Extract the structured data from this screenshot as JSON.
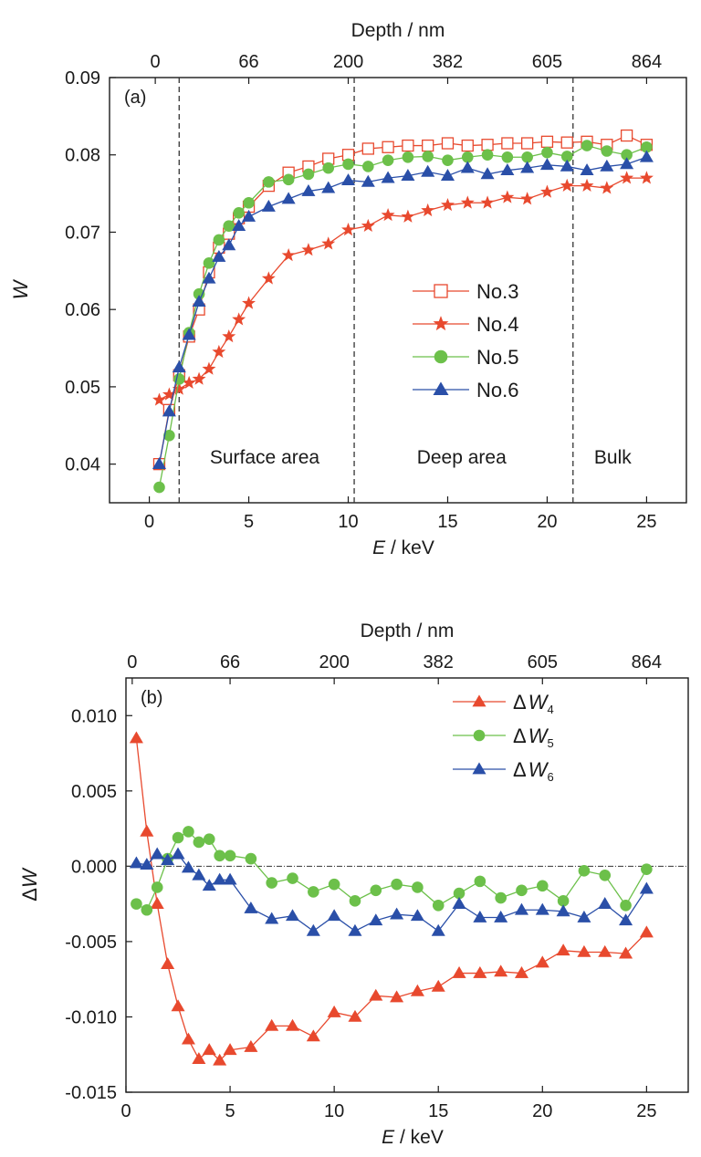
{
  "colors": {
    "no3": "#e8492e",
    "no4": "#e8492e",
    "no5": "#6cc04a",
    "no6": "#2a4fa8",
    "dW4": "#e8492e",
    "dW5": "#6cc04a",
    "dW6": "#2a4fa8"
  },
  "chart_data": [
    {
      "type": "line",
      "panel_label": "(a)",
      "xlabel_italic": "E",
      "xlabel_rest": " / keV",
      "ylabel": "W",
      "top_axis_label": "Depth / nm",
      "xlim": [
        -2,
        27
      ],
      "ylim": [
        0.035,
        0.09
      ],
      "xticks": [
        0,
        5,
        10,
        15,
        20,
        25
      ],
      "xtick_labels": [
        "0",
        "5",
        "10",
        "15",
        "20",
        "25"
      ],
      "yticks": [
        0.04,
        0.05,
        0.06,
        0.07,
        0.08,
        0.09
      ],
      "ytick_labels": [
        "0.04",
        "0.05",
        "0.06",
        "0.07",
        "0.08",
        "0.09"
      ],
      "top_ticks": [
        0.3,
        5,
        10,
        15,
        20,
        25
      ],
      "top_tick_labels": [
        "0",
        "66",
        "200",
        "382",
        "605",
        "864"
      ],
      "vlines": [
        1.5,
        10.3,
        21.3
      ],
      "regions": [
        {
          "text": "Surface area",
          "x": 5.8,
          "y": 0.0401
        },
        {
          "text": "Deep area",
          "x": 15.7,
          "y": 0.0401
        },
        {
          "text": "Bulk",
          "x": 23.3,
          "y": 0.0401
        }
      ],
      "legend": [
        "No.3",
        "No.4",
        "No.5",
        "No.6"
      ],
      "series": [
        {
          "name": "No.3",
          "marker": "square-open",
          "color_key": "no3",
          "x": [
            0.5,
            1,
            1.5,
            2,
            2.5,
            3,
            3.5,
            4,
            4.5,
            5,
            6,
            7,
            8,
            9,
            10,
            11,
            12,
            13,
            14,
            15,
            16,
            17,
            18,
            19,
            20,
            21,
            22,
            23,
            24,
            25
          ],
          "y": [
            0.04,
            0.047,
            0.0515,
            0.0565,
            0.06,
            0.0648,
            0.068,
            0.0698,
            0.0718,
            0.0733,
            0.076,
            0.0777,
            0.0785,
            0.0795,
            0.08,
            0.0808,
            0.081,
            0.0812,
            0.0812,
            0.0815,
            0.0812,
            0.0813,
            0.0815,
            0.0815,
            0.0817,
            0.0816,
            0.0817,
            0.0813,
            0.0825,
            0.0813
          ]
        },
        {
          "name": "No.4",
          "marker": "star",
          "color_key": "no4",
          "x": [
            0.5,
            1,
            1.5,
            2,
            2.5,
            3,
            3.5,
            4,
            4.5,
            5,
            6,
            7,
            8,
            9,
            10,
            11,
            12,
            13,
            14,
            15,
            16,
            17,
            18,
            19,
            20,
            21,
            22,
            23,
            24,
            25
          ],
          "y": [
            0.0483,
            0.049,
            0.0497,
            0.0505,
            0.051,
            0.0523,
            0.0545,
            0.0565,
            0.0587,
            0.0608,
            0.064,
            0.067,
            0.0677,
            0.0685,
            0.0703,
            0.0708,
            0.0722,
            0.072,
            0.0728,
            0.0735,
            0.0738,
            0.0738,
            0.0745,
            0.0743,
            0.0752,
            0.076,
            0.076,
            0.0757,
            0.077,
            0.077
          ]
        },
        {
          "name": "No.5",
          "marker": "circle",
          "color_key": "no5",
          "x": [
            0.5,
            1,
            1.5,
            2,
            2.5,
            3,
            3.5,
            4,
            4.5,
            5,
            6,
            7,
            8,
            9,
            10,
            11,
            12,
            13,
            14,
            15,
            16,
            17,
            18,
            19,
            20,
            21,
            22,
            23,
            24,
            25
          ],
          "y": [
            0.037,
            0.0437,
            0.051,
            0.057,
            0.062,
            0.066,
            0.069,
            0.0708,
            0.0725,
            0.0738,
            0.0765,
            0.0768,
            0.0775,
            0.0783,
            0.0788,
            0.0785,
            0.0793,
            0.0797,
            0.0798,
            0.0793,
            0.0797,
            0.08,
            0.0797,
            0.0797,
            0.0803,
            0.0798,
            0.0812,
            0.0805,
            0.08,
            0.081
          ]
        },
        {
          "name": "No.6",
          "marker": "triangle",
          "color_key": "no6",
          "x": [
            0.5,
            1,
            1.5,
            2,
            2.5,
            3,
            3.5,
            4,
            4.5,
            5,
            6,
            7,
            8,
            9,
            10,
            11,
            12,
            13,
            14,
            15,
            16,
            17,
            18,
            19,
            20,
            21,
            22,
            23,
            24,
            25
          ],
          "y": [
            0.04,
            0.0468,
            0.0525,
            0.0567,
            0.061,
            0.064,
            0.0668,
            0.0683,
            0.0708,
            0.072,
            0.0733,
            0.0743,
            0.0753,
            0.0757,
            0.0767,
            0.0765,
            0.077,
            0.0773,
            0.0778,
            0.0773,
            0.0783,
            0.0775,
            0.078,
            0.0783,
            0.0787,
            0.0785,
            0.078,
            0.0785,
            0.0788,
            0.0797
          ]
        }
      ]
    },
    {
      "type": "line",
      "panel_label": "(b)",
      "xlabel_italic": "E",
      "xlabel_rest": " / keV",
      "ylabel": "ΔW",
      "top_axis_label": "Depth / nm",
      "xlim": [
        0,
        27
      ],
      "ylim": [
        -0.015,
        0.0125
      ],
      "xticks": [
        0,
        5,
        10,
        15,
        20,
        25
      ],
      "xtick_labels": [
        "0",
        "5",
        "10",
        "15",
        "20",
        "25"
      ],
      "yticks": [
        -0.015,
        -0.01,
        -0.005,
        0,
        0.005,
        0.01
      ],
      "ytick_labels": [
        "-0.015",
        "-0.010",
        "-0.005",
        "0.000",
        "0.005",
        "0.010"
      ],
      "top_ticks": [
        0.3,
        5,
        10,
        15,
        20,
        25
      ],
      "top_tick_labels": [
        "0",
        "66",
        "200",
        "382",
        "605",
        "864"
      ],
      "hline": 0,
      "legend": [
        {
          "delta": "Δ",
          "var": "W",
          "sub": "4"
        },
        {
          "delta": "Δ",
          "var": "W",
          "sub": "5"
        },
        {
          "delta": "Δ",
          "var": "W",
          "sub": "6"
        }
      ],
      "series": [
        {
          "name": "ΔW4",
          "marker": "triangle",
          "color_key": "dW4",
          "x": [
            0.5,
            1,
            1.5,
            2,
            2.5,
            3,
            3.5,
            4,
            4.5,
            5,
            6,
            7,
            8,
            9,
            10,
            11,
            12,
            13,
            14,
            15,
            16,
            17,
            18,
            19,
            20,
            21,
            22,
            23,
            24,
            25
          ],
          "y": [
            0.0085,
            0.0023,
            -0.0025,
            -0.0065,
            -0.0093,
            -0.0115,
            -0.0128,
            -0.0122,
            -0.0129,
            -0.0122,
            -0.012,
            -0.0106,
            -0.0106,
            -0.0113,
            -0.0097,
            -0.01,
            -0.0086,
            -0.0087,
            -0.0083,
            -0.008,
            -0.0071,
            -0.0071,
            -0.007,
            -0.0071,
            -0.0064,
            -0.0056,
            -0.0057,
            -0.0057,
            -0.0058,
            -0.0044
          ]
        },
        {
          "name": "ΔW5",
          "marker": "circle",
          "color_key": "dW5",
          "x": [
            0.5,
            1,
            1.5,
            2,
            2.5,
            3,
            3.5,
            4,
            4.5,
            5,
            6,
            7,
            8,
            9,
            10,
            11,
            12,
            13,
            14,
            15,
            16,
            17,
            18,
            19,
            20,
            21,
            22,
            23,
            24,
            25
          ],
          "y": [
            -0.0025,
            -0.0029,
            -0.0014,
            0.0005,
            0.0019,
            0.0023,
            0.0016,
            0.0018,
            0.0007,
            0.0007,
            0.0005,
            -0.0011,
            -0.0008,
            -0.0017,
            -0.0012,
            -0.0023,
            -0.0016,
            -0.0012,
            -0.0014,
            -0.0026,
            -0.0018,
            -0.001,
            -0.0021,
            -0.0016,
            -0.0013,
            -0.0023,
            -0.0003,
            -0.0006,
            -0.0026,
            -0.0002
          ]
        },
        {
          "name": "ΔW6",
          "marker": "triangle",
          "color_key": "dW6",
          "x": [
            0.5,
            1,
            1.5,
            2,
            2.5,
            3,
            3.5,
            4,
            4.5,
            5,
            6,
            7,
            8,
            9,
            10,
            11,
            12,
            13,
            14,
            15,
            16,
            17,
            18,
            19,
            20,
            21,
            22,
            23,
            24,
            25
          ],
          "y": [
            0.0002,
            0.0001,
            0.0008,
            0.0004,
            0.0008,
            -0.0001,
            -0.0006,
            -0.0013,
            -0.0009,
            -0.0009,
            -0.0028,
            -0.0035,
            -0.0033,
            -0.0043,
            -0.0033,
            -0.0043,
            -0.0036,
            -0.0032,
            -0.0033,
            -0.0043,
            -0.0025,
            -0.0034,
            -0.0034,
            -0.0029,
            -0.0029,
            -0.003,
            -0.0034,
            -0.0025,
            -0.0036,
            -0.0015
          ]
        }
      ]
    }
  ]
}
